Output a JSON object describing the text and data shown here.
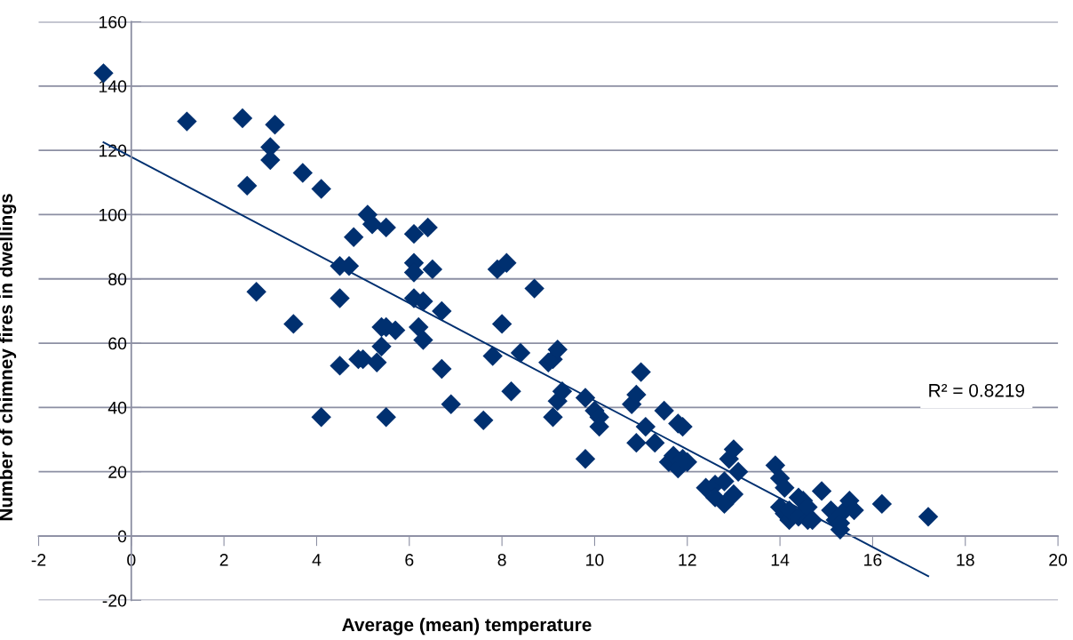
{
  "chart_data": {
    "type": "scatter",
    "xlabel": "Average (mean) temperature",
    "ylabel": "Number of chimney fires in dwellings",
    "xlim": [
      -2,
      20
    ],
    "xticks": [
      -2,
      0,
      2,
      4,
      6,
      8,
      10,
      12,
      14,
      16,
      18,
      20
    ],
    "ylim": [
      -20,
      160
    ],
    "yticks": [
      -20,
      0,
      20,
      40,
      60,
      80,
      100,
      120,
      140,
      160
    ],
    "grid": "y",
    "marker": "diamond",
    "annotations": [
      "R² = 0.8219"
    ],
    "series": [
      {
        "color": "#003070",
        "x": [
          -0.6,
          1.2,
          2.4,
          3.1,
          3.0,
          3.0,
          2.5,
          3.7,
          4.1,
          2.7,
          3.5,
          4.1,
          4.5,
          4.7,
          4.5,
          4.5,
          4.8,
          5.1,
          5.2,
          5.5,
          4.9,
          5.0,
          5.3,
          5.4,
          5.4,
          5.5,
          5.7,
          5.5,
          6.1,
          6.4,
          6.1,
          6.1,
          6.5,
          6.1,
          6.3,
          6.2,
          6.3,
          6.7,
          6.7,
          6.9,
          7.6,
          7.8,
          7.9,
          8.1,
          8.0,
          8.4,
          8.2,
          8.7,
          9.0,
          9.1,
          9.2,
          9.1,
          9.2,
          9.3,
          9.8,
          9.8,
          10.0,
          10.1,
          10.1,
          10.8,
          10.9,
          11.0,
          10.9,
          11.1,
          11.3,
          11.5,
          11.6,
          11.8,
          11.9,
          11.7,
          11.8,
          12.0,
          11.9,
          12.4,
          12.6,
          12.6,
          12.8,
          12.8,
          12.9,
          13.0,
          13.0,
          13.1,
          13.9,
          14.0,
          14.0,
          14.1,
          14.1,
          14.2,
          14.2,
          14.4,
          14.4,
          14.5,
          14.6,
          14.6,
          14.7,
          14.9,
          15.1,
          15.2,
          15.3,
          15.3,
          15.4,
          15.5,
          15.6,
          16.2,
          17.2
        ],
        "values": [
          144,
          129,
          130,
          128,
          121,
          117,
          109,
          113,
          108,
          76,
          66,
          37,
          84,
          84,
          74,
          53,
          93,
          100,
          97,
          96,
          55,
          55,
          54,
          59,
          65,
          65,
          64,
          37,
          94,
          96,
          85,
          82,
          83,
          74,
          73,
          65,
          61,
          70,
          52,
          41,
          36,
          56,
          83,
          85,
          66,
          57,
          45,
          77,
          54,
          55,
          58,
          37,
          42,
          45,
          43,
          24,
          39,
          37,
          34,
          41,
          44,
          51,
          29,
          34,
          29,
          39,
          23,
          35,
          34,
          25,
          21,
          23,
          24,
          15,
          16,
          12,
          10,
          17,
          24,
          27,
          13,
          20,
          22,
          18,
          9,
          15,
          7,
          5,
          8,
          12,
          6,
          11,
          5,
          9,
          5,
          14,
          8,
          5,
          2,
          4,
          8,
          11,
          8,
          10,
          6
        ]
      },
      {
        "type": "line",
        "color": "#003070",
        "marker": "none",
        "x": [
          -0.6,
          17.2
        ],
        "values": [
          122.5,
          -12.5
        ]
      }
    ]
  }
}
